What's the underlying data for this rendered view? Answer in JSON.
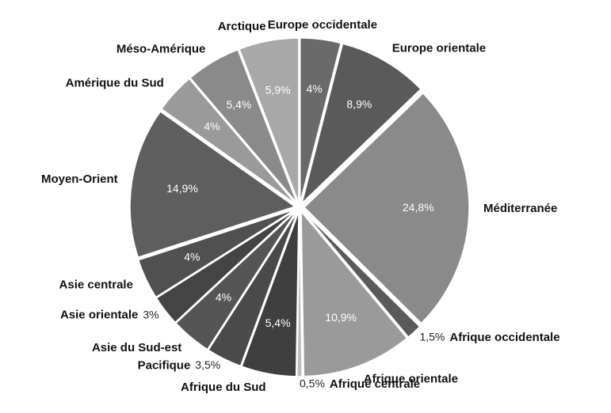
{
  "chart_data": {
    "type": "pie",
    "categories": [
      "Europe occidentale",
      "Europe orientale",
      "Méditerranée",
      "Afrique occidentale",
      "Afrique orientale",
      "Afrique centrale",
      "Afrique du Sud",
      "Pacifique",
      "Asie du Sud-est",
      "Asie orientale",
      "Asie centrale",
      "Moyen-Orient",
      "Amérique du Sud",
      "Méso-Amérique",
      "Arctique"
    ],
    "values": [
      4,
      8.9,
      24.8,
      1.5,
      10.9,
      0.5,
      5.4,
      3.5,
      4,
      3,
      4,
      14.9,
      4,
      5.4,
      5.9
    ],
    "value_labels": [
      "4%",
      "8,9%",
      "24,8%",
      "1,5%",
      "10,9%",
      "0,5%",
      "5,4%",
      "3,5%",
      "4%",
      "3%",
      "4%",
      "14,9%",
      "4%",
      "5,4%",
      "5,9%"
    ],
    "colors": [
      "#6a6a6a",
      "#5a5a5a",
      "#8a8a8a",
      "#5a5a5a",
      "#9a9a9a",
      "#bdbdbd",
      "#3f3f3f",
      "#4a4a4a",
      "#555555",
      "#444444",
      "#505050",
      "#5e5e5e",
      "#9a9a9a",
      "#8a8a8a",
      "#a8a8a8"
    ]
  }
}
